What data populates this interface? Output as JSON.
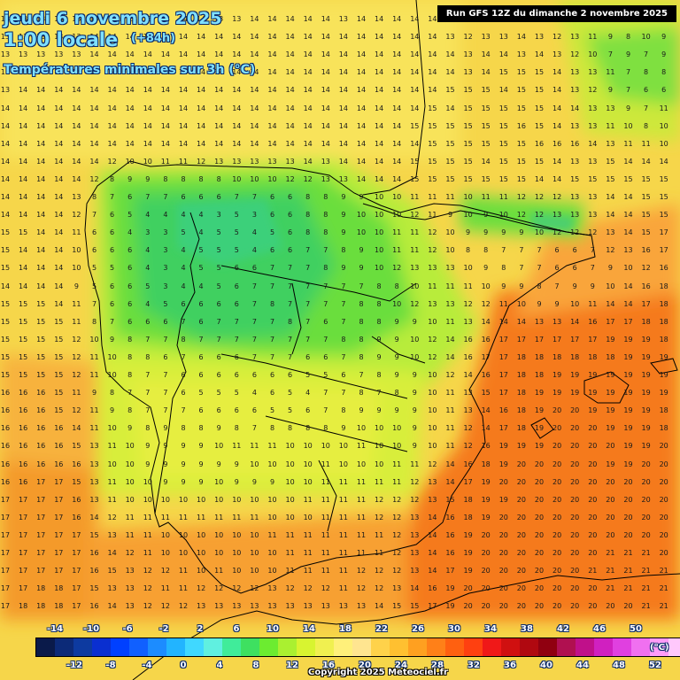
{
  "header": {
    "date": "jeudi 6 novembre 2025",
    "time": "1:00 locale",
    "offset": "(+84h)",
    "parameter": "Températures minimales sur 3h (°C)",
    "run": "Run GFS 12Z du dimanche 2 novembre 2025"
  },
  "legend": {
    "top_labels": [
      "-14",
      "-10",
      "-6",
      "-2",
      "2",
      "6",
      "10",
      "14",
      "18",
      "22",
      "26",
      "30",
      "34",
      "38",
      "42",
      "46",
      "50"
    ],
    "bottom_labels": [
      "-12",
      "-8",
      "-4",
      "0",
      "4",
      "8",
      "12",
      "16",
      "20",
      "24",
      "28",
      "32",
      "36",
      "40",
      "44",
      "48",
      "52"
    ],
    "unit": "(°C)",
    "colors": [
      "#0a1a4a",
      "#0c2a78",
      "#0d3aa0",
      "#0a2fd0",
      "#0040ff",
      "#1060ff",
      "#1c8cff",
      "#22b4ff",
      "#40d8ff",
      "#60f0e0",
      "#40ec9a",
      "#3ee060",
      "#6cec30",
      "#aaf030",
      "#d8f430",
      "#f0f050",
      "#fff07a",
      "#ffe590",
      "#ffd24a",
      "#ffc030",
      "#ffa020",
      "#ff8018",
      "#ff6010",
      "#ff4010",
      "#f01818",
      "#d01010",
      "#b00810",
      "#900010",
      "#b01050",
      "#c0108a",
      "#d020c0",
      "#e040e0",
      "#f070f0",
      "#ff9cf8",
      "#ffc8fc",
      "#ffffff"
    ],
    "copyright": "Copyright 2025 Meteociel.fr"
  },
  "map": {
    "grid_values": [
      "13 13 13 13 13 13 13 13 13 13 14 14 13 13 14 14 14 14 14 13 14 14 14 14 14 13 13 13 14 14 14 14 13 13 12 12 12 12",
      "13 13 13 13 13 14 14 14 14 14 14 14 14 14 14 14 14 14 14 14 14 14 14 14 14 13 12 13 13 14 13 12 13 11 9 8 10 9 8",
      "13 13 13 13 13 14 14 14 14 14 14 14 14 14 14 14 14 14 14 14 14 14 14 14 14 14 13 14 14 13 14 13 12 10 7 9 7 9 9",
      "13 13 14 14 14 14 14 14 14 14 14 14 14 14 14 14 14 14 14 14 14 14 14 14 14 14 13 14 15 15 15 14 13 13 11 7 8 8 8",
      "13 14 14 14 14 14 14 14 14 14 14 14 14 14 14 14 14 14 14 14 14 14 14 14 14 15 15 15 14 15 15 14 13 12 9 7 6 6 8",
      "14 14 14 14 14 14 14 14 14 14 14 14 14 14 14 14 14 14 14 14 14 14 14 14 15 14 15 15 15 15 15 14 14 13 13 9 7 11 8",
      "14 14 14 14 14 14 14 14 14 14 14 14 14 14 14 14 14 14 14 14 14 14 14 15 15 15 15 15 15 16 15 14 13 13 11 10 8 10 11",
      "14 14 14 14 14 14 14 14 14 14 14 14 14 14 14 14 14 14 14 14 14 14 14 14 15 15 15 15 15 15 16 16 16 14 13 11 11 10 11",
      "14 14 14 14 14 14 12 10 10 11 11 12 13 13 13 13 13 14 13 14 14 14 14 15 15 15 15 14 15 15 15 14 13 13 15 14 14 14 14",
      "14 14 14 14 14 12 8 9 9 8 8 8 8 10 10 10 12 12 13 13 14 14 14 15 15 15 15 15 15 15 14 14 15 15 15 15 15 15 15",
      "14 14 14 14 13 8 7 6 7 7 6 6 6 7 7 6 6 8 8 9 9 10 10 11 11 11 10 11 11 12 12 12 13 13 14 14 15 15 15",
      "14 14 14 14 12 7 6 5 4 4 4 4 3 5 3 6 6 8 8 9 10 10 10 12 11 9 10 9 10 12 12 13 13 13 14 14 15 15 15",
      "15 15 14 14 11 6 6 4 3 3 5 4 5 5 4 5 6 8 8 9 10 10 11 11 12 10 9 9 9 9 10 12 12 12 13 14 15 17 17",
      "15 14 14 14 10 6 6 6 4 3 4 5 5 5 4 6 6 7 7 8 9 10 11 11 12 10 8 8 7 7 7 6 6 7 12 13 16 17 17",
      "15 14 14 14 10 5 5 6 4 3 4 5 5 6 6 7 7 7 8 9 9 10 12 13 13 13 10 9 8 7 7 6 6 7 9 10 12 16 17",
      "14 14 14 14 9 5 6 6 5 3 4 4 5 6 7 7 7 7 7 7 7 8 8 10 11 11 11 10 9 9 8 7 9 9 10 14 16 18 18",
      "15 15 15 14 11 7 6 6 4 5 6 6 6 6 7 8 7 7 7 7 8 8 10 12 13 13 12 12 11 10 9 9 10 11 14 14 17 18 18",
      "15 15 15 15 11 8 7 6 6 6 7 6 7 7 7 7 8 7 6 7 8 8 9 9 10 11 13 14 14 14 13 13 14 16 17 17 18 18 19",
      "15 15 15 15 12 10 9 8 7 7 8 7 7 7 7 7 7 7 7 8 8 9 9 10 12 14 16 16 17 17 17 17 17 17 19 19 19 18 18",
      "15 15 15 15 12 11 10 8 8 6 7 6 6 6 7 7 7 6 6 7 8 9 9 10 12 14 16 17 17 18 18 18 18 18 18 19 19 19 19",
      "15 15 15 15 12 11 10 8 7 7 6 6 6 6 6 6 6 5 5 6 7 8 9 9 10 12 14 16 17 18 18 19 19 19 19 19 19 19 19",
      "16 16 16 15 11 9 8 7 7 7 6 5 5 5 4 6 5 4 7 7 8 7 8 9 10 11 13 15 17 18 19 19 19 19 19 19 19 19 19",
      "16 16 16 15 12 11 9 8 7 7 7 6 6 6 6 5 5 6 7 8 9 9 9 9 10 11 13 14 16 18 19 20 20 19 19 19 19 18 18",
      "16 16 16 16 14 11 10 9 8 9 8 8 9 8 7 8 8 8 8 9 10 10 10 9 10 11 12 14 17 18 19 20 20 20 19 19 19 18 19",
      "16 16 16 16 15 13 11 10 9 9 9 9 10 11 11 11 10 10 10 10 11 10 10 9 10 11 12 16 19 19 19 20 20 20 20 19 19 20 20",
      "16 16 16 16 16 13 10 10 9 9 9 9 9 9 10 10 10 10 11 10 10 10 11 11 12 14 16 18 19 20 20 20 20 20 19 19 20 20 20",
      "16 16 17 17 15 13 11 10 10 9 9 9 10 9 9 9 10 10 11 11 11 11 11 12 13 14 17 19 20 20 20 20 20 20 20 20 20 20 20",
      "17 17 17 17 16 13 11 10 10 10 10 10 10 10 10 10 10 11 11 11 11 12 12 12 13 15 18 19 19 20 20 20 20 20 20 20 20 20 20",
      "17 17 17 17 16 14 12 11 11 11 11 11 11 11 11 10 10 10 11 11 11 12 12 13 14 16 18 19 20 20 20 20 20 20 20 20 20 20 20",
      "17 17 17 17 17 15 13 11 11 10 10 10 10 10 10 11 11 11 11 11 11 11 12 13 14 16 19 20 20 20 20 20 20 20 20 20 20 20 20",
      "17 17 17 17 17 16 14 12 11 10 10 10 10 10 10 10 11 11 11 11 11 11 12 13 14 16 19 20 20 20 20 20 20 20 21 21 21 20 20",
      "17 17 17 17 17 16 15 13 12 12 11 10 11 10 10 10 11 11 11 11 12 12 12 13 14 17 19 20 20 20 20 20 20 21 21 21 21 21 21",
      "17 17 18 18 17 15 13 13 12 11 11 12 12 12 12 13 12 12 12 11 12 12 13 14 16 19 20 20 20 20 20 20 20 20 21 21 21 21 21",
      "17 18 18 18 17 16 14 13 12 12 12 13 13 13 13 13 13 13 13 13 13 14 15 15 17 19 20 20 20 20 20 20 20 20 20 20 21 21 21",
      "18 18 18 18 18 17 16 15 14 14 14 14 14 14 14 14 15 15 14 14 14 15 16 18 19 20 20 20 20 20 20 20 20 20 20 20 21 21 21",
      "18 18 18 18 18 18 17 16 16 15 15 15 14 13 13 13 14 14 15 15 16 17 18 19 20 20 20 20 20 20 20 20 20 20 20 20 20 21 21",
      "18 18 18 18 18 18 18 17 18 16 16 16 15 14 14 14 15 15 16 16 17 18 19 19 20 20 20 20 20 20 20 20 20 20 20 20 20 21 21",
      "18 18 18 18 19 19 18 18 18 17 17 16 16 16 16 16 16 17 18 18 18 19 19 19 19 19 19 19 19 19 19 19 18 18 17 17 17 17 17",
      "18 18 19 19 19 19 19 19 19 18 18 18 18 18 18 18 18 18 19 19 19 19 18 18 18 18 18 18 18 18 17 17 17 17 17 17 16 16 16",
      "18 19 19 19 19 19 19 19 19 19 19 19 19 19 19 19 19 19 19 19 19 19 19 19 18 18 18 18 18 18 18 17 17 17 17 17 17 17 17",
      "19 19 19 19 19 19 19 19 19 20 20 20 20 20 20 20 20 20 20 20 20 20 20 19 19 19 19 19 19 19 19 19 19 18 18 18 18 18 18",
      "19 19 19 19 19 19 19 19 20 20 20 20 20 20 20 20 20 20 20 20 20 20 20 20 20 20 20 20 20 20 20 20 20 19 19 19 19 19 19",
      "19 19 19 19 19 19 20 20 20 20 20 20 20 20 20 20 20 20 20 20 20 20 20 20 20 20 20 20 20 20 20 20 20 20 20 20 20 20 20",
      "19 19 19 20 20 20 20 20 20 20 20 20 20 20 20 20 20 20 20 20 20 20 20 20 20 20 20 20 20 20 20 20 20 20 20 20 20 20 20",
      "19 19 19 20 20 20 20 20 20 20 20 20 20 20 20 20 20 20 20 20 20 20 20 20 20 20 20 20 20 20 20 20 20 20 20 20 20 20 20"
    ]
  }
}
